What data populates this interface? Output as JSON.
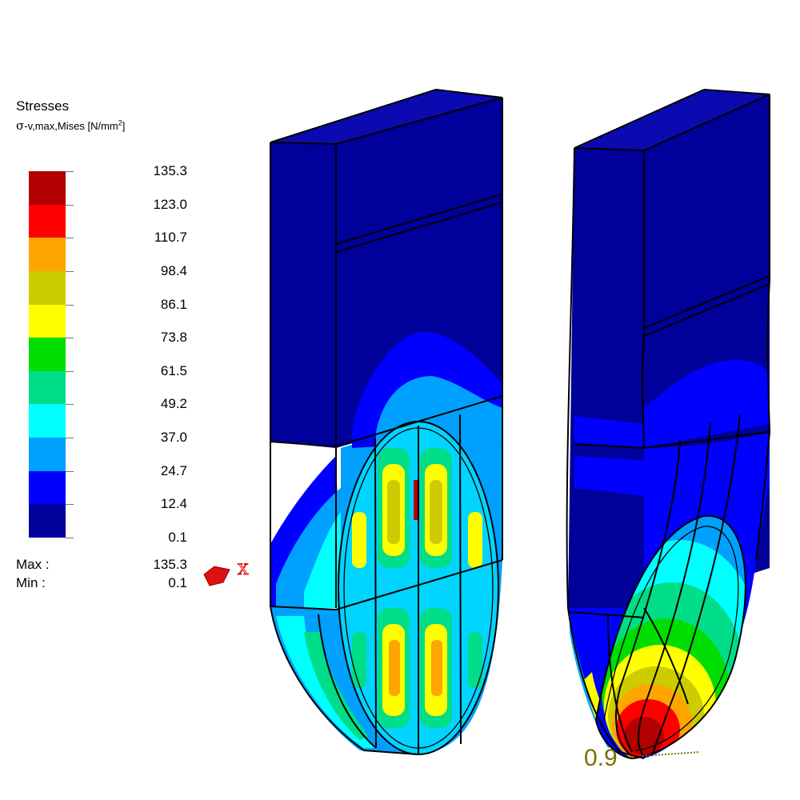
{
  "legend": {
    "title": "Stresses",
    "subtitle_symbol": "σ",
    "subtitle_text": "-v,max,Mises",
    "subtitle_unit_prefix": "[N/mm",
    "subtitle_unit_exp": "2",
    "subtitle_unit_suffix": "]",
    "levels": [
      "135.3",
      "123.0",
      "110.7",
      "98.4",
      "86.1",
      "73.8",
      "61.5",
      "49.2",
      "37.0",
      "24.7",
      "12.4",
      "0.1"
    ],
    "colors": [
      "#b30000",
      "#ff0000",
      "#ffa500",
      "#cccc00",
      "#ffff00",
      "#00dd00",
      "#00dd88",
      "#00ffff",
      "#00a0ff",
      "#0000ff",
      "#00009a"
    ]
  },
  "stats": {
    "max_label": "Max :",
    "max_value": "135.3",
    "min_label": "Min :",
    "min_value": "0.1"
  },
  "axis": {
    "label": "X",
    "color": "#dd1111"
  },
  "annotation": {
    "value": "0.9",
    "color": "#7a7000"
  }
}
